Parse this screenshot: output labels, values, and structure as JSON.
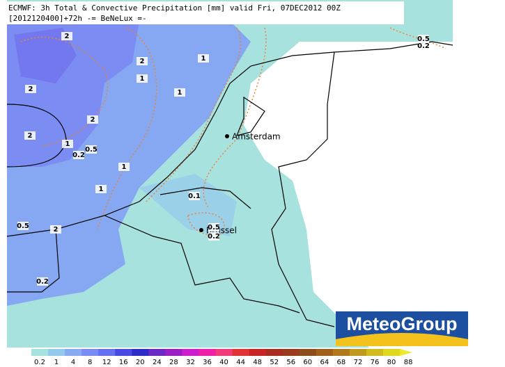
{
  "header": {
    "line1": "ECMWF: 3h Total & Convective Precipitation [mm] valid Fri, 07DEC2012 00Z",
    "line2": "[2012120400]+72h -= BeNeLux =-"
  },
  "cities": [
    "Amsterdam",
    "Brussel"
  ],
  "contour_labels": [
    "2",
    "2",
    "1",
    "1",
    "1",
    "2",
    "2",
    "2",
    "1",
    "0.5",
    "0.2",
    "1",
    "1",
    "0.1",
    "0.5",
    "0.2",
    "0.5",
    "2",
    "0.2",
    "0.5",
    "0.2"
  ],
  "logo": "MeteoGroup",
  "legend": {
    "labels": [
      "0.2",
      "1",
      "4",
      "8",
      "12",
      "16",
      "20",
      "24",
      "28",
      "32",
      "36",
      "40",
      "44",
      "48",
      "52",
      "56",
      "60",
      "64",
      "68",
      "72",
      "76",
      "80",
      "88"
    ],
    "colors": [
      "#a6e3df",
      "#94c9ee",
      "#88aaf2",
      "#7a8cf4",
      "#6470f0",
      "#4848e4",
      "#2c2cc8",
      "#6a28c4",
      "#9a20c4",
      "#cc20cc",
      "#ee20a8",
      "#f03c78",
      "#e03434",
      "#c82424",
      "#a82c20",
      "#9a3c1c",
      "#8c4c1c",
      "#a0601c",
      "#b07a1c",
      "#c09a1c",
      "#d0bc1c",
      "#e0d81c",
      "#f0e82c"
    ]
  }
}
